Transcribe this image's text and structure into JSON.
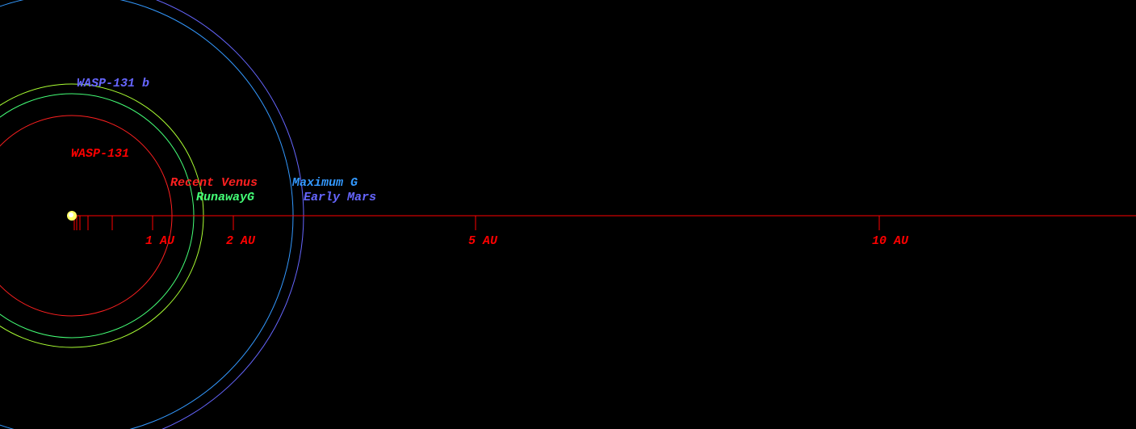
{
  "star": {
    "name": "WASP-131",
    "color": "#ffff66"
  },
  "planet": {
    "name": "WASP-131 b",
    "color": "#6666ff"
  },
  "zones": [
    {
      "name": "Recent Venus",
      "color": "#ff2020",
      "radius_au": 1.24
    },
    {
      "name": "RunawayG",
      "color": "#44ff77",
      "radius_au": 1.51
    },
    {
      "name": "Maximum G",
      "color": "#3399ff",
      "radius_au": 2.74
    },
    {
      "name": "Early Mars",
      "color": "#6666ff",
      "radius_au": 2.87
    }
  ],
  "rings": [
    {
      "color": "#aaff33",
      "radius_au": 1.63
    }
  ],
  "axis": {
    "color": "#ff0000",
    "xlim": [
      0,
      13.18
    ],
    "ticks": [
      {
        "value": 0.03,
        "label": null
      },
      {
        "value": 0.06,
        "label": null
      },
      {
        "value": 0.1,
        "label": null
      },
      {
        "value": 0.2,
        "label": null
      },
      {
        "value": 0.5,
        "label": null
      },
      {
        "value": 1,
        "label": "1 AU"
      },
      {
        "value": 2,
        "label": "2 AU"
      },
      {
        "value": 5,
        "label": "5 AU"
      },
      {
        "value": 10,
        "label": "10 AU"
      }
    ]
  }
}
